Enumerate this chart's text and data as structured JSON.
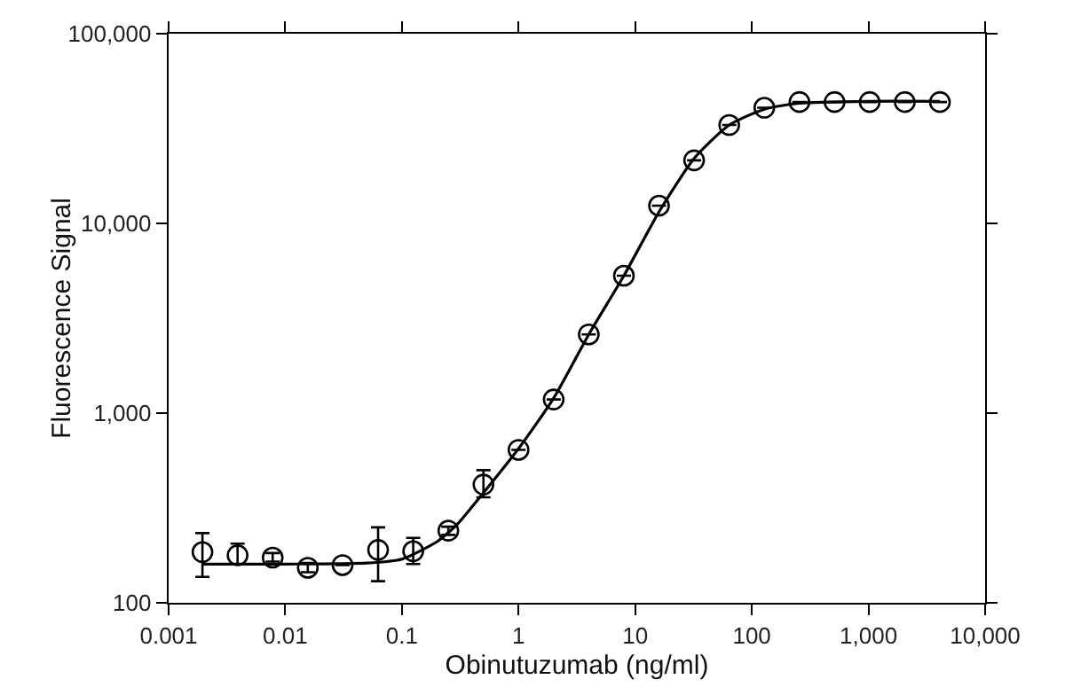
{
  "chart_data": {
    "type": "scatter",
    "xlabel": "Obinutuzumab (ng/ml)",
    "ylabel": "Fluorescence Signal",
    "log": "xy",
    "grid": false,
    "xlim": [
      0.001,
      10000
    ],
    "xticks": [
      0.001,
      0.01,
      0.1,
      1,
      10,
      {
        "value": 100,
        "label": "100"
      },
      {
        "value": 1000,
        "label": "1,000"
      },
      {
        "value": 10000,
        "label": "10,000"
      }
    ],
    "ylim": [
      100,
      100000
    ],
    "yticks": [
      100,
      {
        "value": 1000,
        "label": "1,000"
      },
      {
        "value": 10000,
        "label": "10,000"
      },
      {
        "value": 100000,
        "label": "100,000"
      }
    ],
    "x": [
      0.00195,
      0.0039,
      0.0078,
      0.0156,
      0.031,
      0.0625,
      0.125,
      0.25,
      0.5,
      1,
      2,
      4,
      8,
      16,
      32,
      64,
      128,
      256,
      512,
      1024,
      2048,
      4096
    ],
    "series": [
      {
        "marker": "circle",
        "color": "#000000",
        "values": [
          185,
          178,
          173,
          153,
          158,
          190,
          187,
          240,
          420,
          640,
          1180,
          2600,
          5300,
          12400,
          21500,
          33000,
          40700,
          43600,
          43600,
          43600,
          43600,
          43600
        ],
        "errors": [
          [
            137,
            233
          ],
          [
            160,
            205
          ],
          [
            165,
            183
          ],
          [
            145,
            162
          ],
          null,
          [
            130,
            250
          ],
          [
            160,
            220
          ],
          [
            228,
            252
          ],
          [
            360,
            500
          ],
          null,
          null,
          null,
          null,
          null,
          null,
          null,
          null,
          null,
          null,
          null,
          null,
          null
        ]
      },
      {
        "type": "line",
        "color": "#000000",
        "line_style": "solid",
        "x": [
          0.00195,
          0.01,
          0.05,
          0.1,
          0.2,
          0.3,
          0.5,
          1,
          2,
          4,
          8,
          16,
          32,
          64,
          128,
          256,
          1000,
          4096
        ],
        "values": [
          160,
          160,
          162,
          170,
          210,
          260,
          380,
          650,
          1200,
          2600,
          5300,
          11500,
          22000,
          33000,
          40000,
          43000,
          44000,
          44000
        ]
      }
    ]
  }
}
